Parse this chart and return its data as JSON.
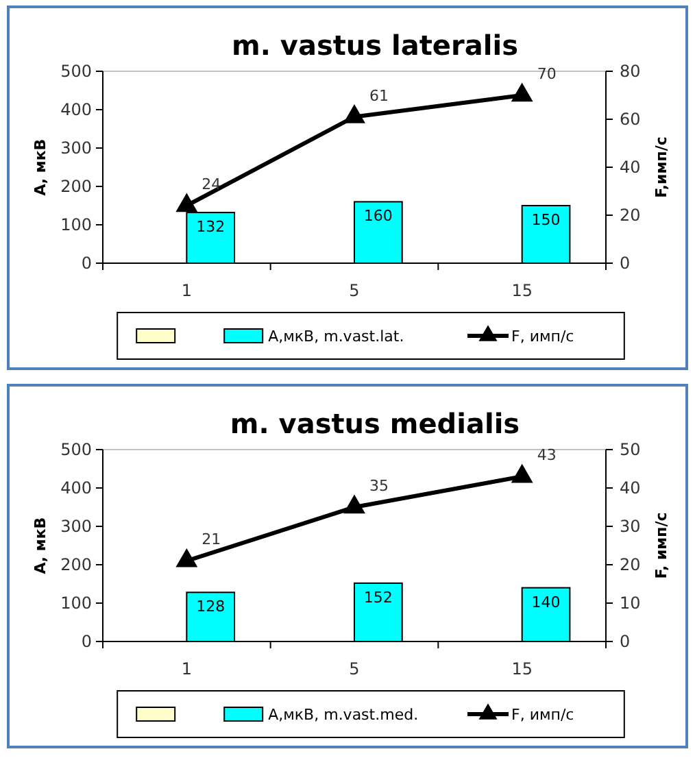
{
  "chart_data": [
    {
      "type": "bar",
      "title": "m. vastus lateralis",
      "ylabel": "А, мкВ",
      "y2label": "F,имп/с",
      "categories": [
        "1",
        "5",
        "15"
      ],
      "series": [
        {
          "color": "#ffffcc",
          "values": [
            null,
            null,
            null
          ]
        },
        {
          "name": "А,мкВ, m.vast.lat.",
          "color": "#00ffff",
          "values": [
            132,
            160,
            150
          ]
        },
        {
          "name": "F, имп/с",
          "type": "line",
          "axis": "y2",
          "color": "#000000",
          "values": [
            24,
            61,
            70
          ]
        }
      ],
      "ylim": [
        0,
        500
      ],
      "yticks": [
        0,
        100,
        200,
        300,
        400,
        500
      ],
      "y2lim": [
        0,
        80
      ],
      "y2ticks": [
        0,
        20,
        40,
        60,
        80
      ],
      "data_labels": true,
      "legend": "bottom",
      "marker": "triangle",
      "grid": false
    },
    {
      "type": "bar",
      "title": "m. vastus medialis",
      "ylabel": "А, мкВ",
      "y2label": "F, имп/с",
      "categories": [
        "1",
        "5",
        "15"
      ],
      "series": [
        {
          "color": "#ffffcc",
          "values": [
            null,
            null,
            null
          ]
        },
        {
          "name": "А,мкВ, m.vast.med.",
          "color": "#00ffff",
          "values": [
            128,
            152,
            140
          ]
        },
        {
          "name": "F, имп/с",
          "type": "line",
          "axis": "y2",
          "color": "#000000",
          "values": [
            21,
            35,
            43
          ]
        }
      ],
      "ylim": [
        0,
        500
      ],
      "yticks": [
        0,
        100,
        200,
        300,
        400,
        500
      ],
      "y2lim": [
        0,
        50
      ],
      "y2ticks": [
        0,
        10,
        20,
        30,
        40,
        50
      ],
      "data_labels": true,
      "legend": "bottom",
      "marker": "triangle",
      "grid": false
    }
  ]
}
